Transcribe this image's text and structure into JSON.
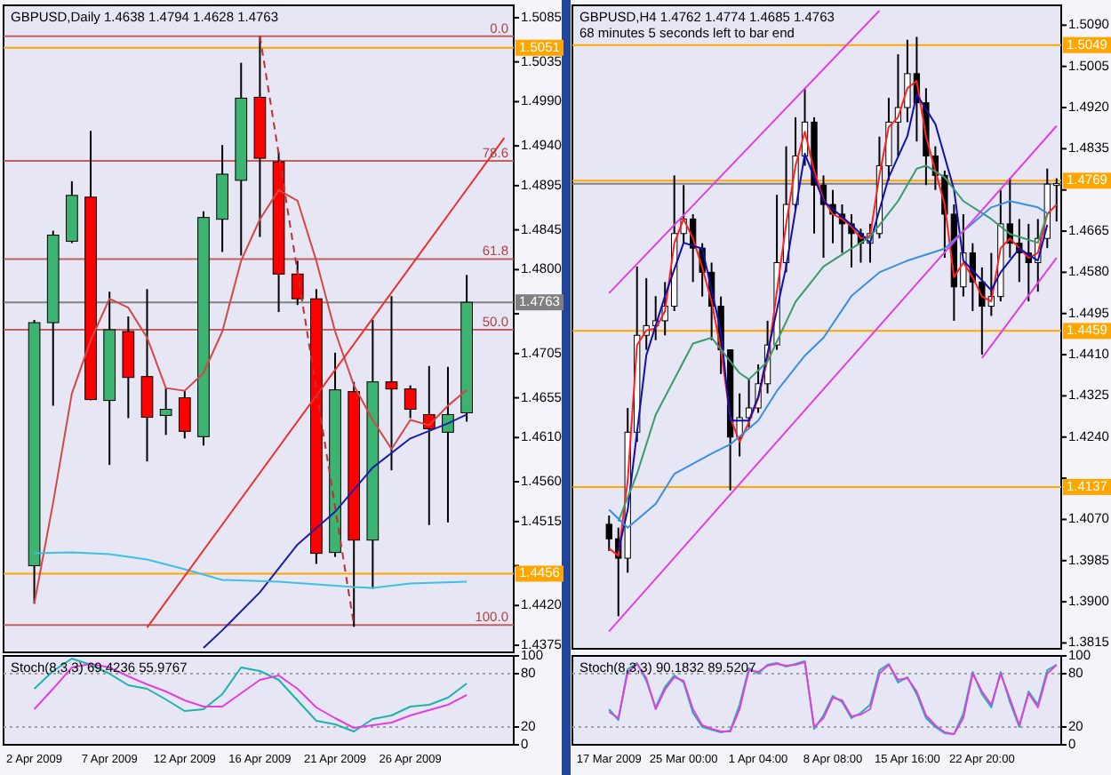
{
  "chart_data": [
    {
      "type": "candlestick",
      "title": "GBPUSD,Daily  1.4638 1.4794 1.4628 1.4763",
      "tick_labels": "y",
      "categories": [
        null,
        null,
        null,
        null,
        null,
        null,
        null,
        null,
        null,
        null,
        null,
        null,
        null,
        null,
        null,
        null,
        null,
        null,
        null,
        null,
        null,
        null,
        null,
        null,
        null,
        null
      ],
      "ohlc": [
        [
          1.4465,
          1.4743,
          1.4422,
          1.474
        ],
        [
          1.474,
          1.4844,
          1.4646,
          1.4839
        ],
        [
          1.4832,
          1.49,
          1.483,
          1.4884
        ],
        [
          1.4882,
          1.4957,
          1.4652,
          1.4653
        ],
        [
          1.4652,
          1.4775,
          1.4579,
          1.4732
        ],
        [
          1.473,
          1.4747,
          1.4632,
          1.4678
        ],
        [
          1.4679,
          1.4778,
          1.4583,
          1.4633
        ],
        [
          1.4635,
          1.4666,
          1.4613,
          1.4642
        ],
        [
          1.4655,
          1.4663,
          1.4609,
          1.4617
        ],
        [
          1.4611,
          1.4866,
          1.4601,
          1.4859
        ],
        [
          1.4857,
          1.4941,
          1.482,
          1.4908
        ],
        [
          1.4901,
          1.5034,
          1.4816,
          1.4994
        ],
        [
          1.4995,
          1.5064,
          1.4837,
          1.4926
        ],
        [
          1.4922,
          1.4933,
          1.4752,
          1.4795
        ],
        [
          1.4795,
          1.481,
          1.476,
          1.4767
        ],
        [
          1.4767,
          1.4778,
          1.4467,
          1.4479
        ],
        [
          1.448,
          1.4706,
          1.4475,
          1.4664
        ],
        [
          1.4662,
          1.4673,
          1.4396,
          1.4494
        ],
        [
          1.4494,
          1.4743,
          1.4439,
          1.4673
        ],
        [
          1.4673,
          1.477,
          1.4573,
          1.4665
        ],
        [
          1.4665,
          1.4669,
          1.4632,
          1.4642
        ],
        [
          1.4636,
          1.4691,
          1.4511,
          1.462
        ],
        [
          1.4616,
          1.469,
          1.4514,
          1.4636
        ],
        [
          1.4638,
          1.4794,
          1.4628,
          1.4763
        ],
        null,
        null
      ],
      "colors": [
        "#3cb371",
        "#3cb371",
        "#3cb371",
        "#ff0000",
        "#3cb371",
        "#ff0000",
        "#ff0000",
        "#3cb371",
        "#ff0000",
        "#3cb371",
        "#3cb371",
        "#3cb371",
        "#ff0000",
        "#ff0000",
        "#ff0000",
        "#ff0000",
        "#3cb371",
        "#ff0000",
        "#3cb371",
        "#ff0000",
        "#ff0000",
        "#ff0000",
        "#3cb371",
        "#3cb371",
        null,
        null
      ],
      "series": [
        {
          "type": "line",
          "color": "#d04848",
          "values": [
            1.4422,
            1.4536,
            1.466,
            1.472,
            1.4767,
            1.4757,
            1.4723,
            1.4666,
            1.4663,
            1.4683,
            1.473,
            1.481,
            1.4857,
            1.489,
            1.4878,
            1.481,
            1.473,
            1.4669,
            1.463,
            1.4597,
            1.463,
            1.4624,
            1.4646,
            1.4664,
            null,
            null
          ]
        },
        {
          "type": "line",
          "color": "#1c1ca8",
          "values": [
            null,
            null,
            null,
            null,
            null,
            null,
            null,
            null,
            null,
            1.4372,
            1.4392,
            null,
            1.4435,
            null,
            1.4489,
            null,
            1.4526,
            null,
            1.4576,
            null,
            1.4609,
            null,
            1.4626,
            1.4636,
            null,
            null
          ]
        },
        {
          "type": "line",
          "color": "#40bfe0",
          "values": [
            1.4479,
            null,
            1.448,
            null,
            1.4478,
            null,
            1.4472,
            null,
            1.4461,
            null,
            1.4449,
            null,
            null,
            1.4447,
            null,
            null,
            null,
            1.4441,
            1.444,
            null,
            1.4445,
            null,
            null,
            1.4447,
            null,
            null
          ]
        },
        {
          "type": "line",
          "color": "#e83030",
          "values": [
            null,
            null,
            null,
            null,
            null,
            null,
            1.4395,
            null,
            null,
            null,
            null,
            null,
            null,
            null,
            null,
            null,
            null,
            null,
            null,
            null,
            null,
            null,
            null,
            null,
            null,
            1.4949
          ]
        },
        {
          "type": "line",
          "color": "#c03030",
          "line_style": "dashed",
          "values": [
            null,
            null,
            null,
            null,
            null,
            null,
            null,
            null,
            null,
            null,
            null,
            null,
            1.5064,
            null,
            null,
            null,
            null,
            1.4398,
            null,
            null,
            null,
            null,
            null,
            null,
            null,
            null
          ]
        }
      ],
      "ylim": [
        1.4367,
        1.5099
      ],
      "yticks": [
        1.5085,
        1.5035,
        {
          "value": 1.499,
          "label": "1.4990"
        },
        {
          "value": 1.494,
          "label": "1.4940"
        },
        1.4895,
        1.4845,
        {
          "value": 1.48,
          "label": "1.4800"
        },
        {
          "value": 1.475,
          "label": null
        },
        1.4705,
        1.4655,
        {
          "value": 1.461,
          "label": "1.4610"
        },
        {
          "value": 1.456,
          "label": "1.4560"
        },
        1.4515,
        {
          "value": 1.4465,
          "label": null
        },
        {
          "value": 1.442,
          "label": "1.4420"
        },
        1.4375
      ],
      "ref_lines": [
        {
          "axis": "y",
          "value": 1.5051,
          "label": "1.5051",
          "color": "#ffa500"
        },
        {
          "axis": "y",
          "value": 1.4456,
          "label": "1.4456",
          "color": "#ffa500"
        },
        {
          "axis": "y",
          "value": 1.4763,
          "label": "1.4763",
          "color": "#808080"
        },
        {
          "axis": "y",
          "value": 1.5064,
          "color": "#c06060"
        },
        {
          "axis": "y",
          "value": 1.4923,
          "color": "#c06060"
        },
        {
          "axis": "y",
          "value": 1.4812,
          "color": "#c06060"
        },
        {
          "axis": "y",
          "value": 1.4732,
          "color": "#c06060"
        },
        {
          "axis": "y",
          "value": 1.4398,
          "color": "#c06060"
        }
      ],
      "annotations": [
        {
          "text": "0.0",
          "y": 1.5064
        },
        {
          "text": "78.6",
          "y": 1.4923
        },
        {
          "text": "61.8",
          "y": 1.4812
        },
        {
          "text": "50.0",
          "y": 1.4732
        },
        {
          "text": "100.0",
          "y": 1.4398
        }
      ]
    },
    {
      "type": "line",
      "title": "Stoch(8,3,3) 69.4236 55.9767",
      "categories": [
        "2 Apr 2009",
        null,
        null,
        null,
        "7 Apr 2009",
        null,
        null,
        null,
        "12 Apr 2009",
        null,
        null,
        null,
        "16 Apr 2009",
        null,
        null,
        null,
        "21 Apr 2009",
        null,
        null,
        null,
        "26 Apr 2009",
        null,
        null,
        null,
        null,
        null
      ],
      "series": [
        {
          "color": "#20b2aa",
          "values": [
            63,
            83,
            97,
            90,
            80,
            67,
            63,
            51,
            38,
            40,
            57,
            87,
            83,
            73,
            50,
            27,
            23,
            15,
            29,
            33,
            43,
            45,
            53,
            69,
            null,
            null
          ]
        },
        {
          "color": "#e040e0",
          "values": [
            40,
            63,
            87,
            91,
            87,
            77,
            68,
            60,
            50,
            43,
            43,
            58,
            73,
            78,
            63,
            42,
            30,
            19,
            22,
            25,
            33,
            39,
            45,
            56,
            null,
            null
          ]
        }
      ],
      "ylim": [
        0,
        100
      ],
      "yticks": [
        100,
        80,
        20,
        0
      ],
      "ref_lines": [
        {
          "axis": "y",
          "value": 80,
          "color": "#a0a0a0",
          "line_style": "dotted"
        },
        {
          "axis": "y",
          "value": 20,
          "color": "#a0a0a0",
          "line_style": "dotted"
        }
      ]
    },
    {
      "type": "candlestick",
      "title": "GBPUSD,H4  1.4762 1.4774 1.4685 1.4763",
      "subtitle": "68 minutes 5 seconds left to bar end",
      "tick_labels": "y",
      "categories": [
        null,
        null,
        null,
        null,
        null,
        null,
        null,
        null,
        null,
        null,
        null,
        null,
        null,
        null,
        null,
        null,
        null,
        null,
        null,
        null,
        null,
        null,
        null,
        null,
        null,
        null,
        null,
        null,
        null,
        null,
        null,
        null,
        null,
        null,
        null,
        null,
        null,
        null,
        null,
        null,
        null,
        null,
        null,
        null,
        null,
        null,
        null,
        null,
        null
      ],
      "ohlc": [
        [
          1.406,
          1.4078,
          1.4005,
          1.403
        ],
        [
          1.403,
          1.4053,
          1.387,
          1.399
        ],
        [
          1.399,
          1.43,
          1.396,
          1.425
        ],
        [
          1.425,
          1.4592,
          1.423,
          1.445
        ],
        [
          1.445,
          1.4568,
          1.442,
          1.447
        ],
        [
          1.447,
          1.4531,
          1.444,
          1.448
        ],
        [
          1.448,
          1.456,
          1.445,
          1.451
        ],
        [
          1.451,
          1.478,
          1.45,
          1.466
        ],
        [
          1.466,
          1.476,
          1.464,
          1.469
        ],
        [
          1.469,
          1.47,
          1.456,
          1.463
        ],
        [
          1.463,
          1.464,
          1.453,
          1.458
        ],
        [
          1.458,
          1.46,
          1.444,
          1.451
        ],
        [
          1.451,
          1.453,
          1.437,
          1.442
        ],
        [
          1.442,
          1.442,
          1.413,
          1.424
        ],
        [
          1.424,
          1.433,
          1.42,
          1.428
        ],
        [
          1.428,
          1.436,
          1.426,
          1.43
        ],
        [
          1.43,
          1.439,
          1.429,
          1.435
        ],
        [
          1.435,
          1.448,
          1.433,
          1.443
        ],
        [
          1.443,
          1.474,
          1.442,
          1.46
        ],
        [
          1.46,
          1.484,
          1.458,
          1.472
        ],
        [
          1.472,
          1.49,
          1.471,
          1.482
        ],
        [
          1.482,
          1.496,
          1.48,
          1.489
        ],
        [
          1.489,
          1.49,
          1.466,
          1.476
        ],
        [
          1.476,
          1.478,
          1.461,
          1.472
        ],
        [
          1.472,
          1.475,
          1.464,
          1.47
        ],
        [
          1.47,
          1.472,
          1.462,
          1.468
        ],
        [
          1.468,
          1.47,
          1.459,
          1.466
        ],
        [
          1.466,
          1.467,
          1.46,
          1.464
        ],
        [
          1.464,
          1.468,
          1.46,
          1.466
        ],
        [
          1.466,
          1.486,
          1.465,
          1.48
        ],
        [
          1.48,
          1.494,
          1.477,
          1.489
        ],
        [
          1.489,
          1.503,
          1.482,
          1.492
        ],
        [
          1.492,
          1.506,
          1.489,
          1.499
        ],
        [
          1.499,
          1.5066,
          1.485,
          1.493
        ],
        [
          1.493,
          1.496,
          1.476,
          1.482
        ],
        [
          1.482,
          1.484,
          1.475,
          1.478
        ],
        [
          1.478,
          1.479,
          1.461,
          1.47
        ],
        [
          1.47,
          1.472,
          1.448,
          1.455
        ],
        [
          1.455,
          1.47,
          1.453,
          1.462
        ],
        [
          1.462,
          1.464,
          1.45,
          1.456
        ],
        [
          1.456,
          1.459,
          1.441,
          1.451
        ],
        [
          1.451,
          1.462,
          1.449,
          1.453
        ],
        [
          1.453,
          1.475,
          1.452,
          1.468
        ],
        [
          1.468,
          1.4775,
          1.461,
          1.464
        ],
        [
          1.464,
          1.469,
          1.456,
          1.462
        ],
        [
          1.462,
          1.468,
          1.452,
          1.46
        ],
        [
          1.46,
          1.469,
          1.454,
          1.465
        ],
        [
          1.465,
          1.4794,
          1.463,
          1.4762
        ],
        [
          1.4762,
          1.4774,
          1.4685,
          1.4763
        ]
      ],
      "colors": [
        "#000000",
        "#000000",
        "#ffffff",
        "#ffffff",
        "#ffffff",
        "#ffffff",
        "#ffffff",
        "#ffffff",
        "#ffffff",
        "#000000",
        "#000000",
        "#000000",
        "#000000",
        "#000000",
        "#ffffff",
        "#ffffff",
        "#ffffff",
        "#ffffff",
        "#ffffff",
        "#ffffff",
        "#ffffff",
        "#ffffff",
        "#000000",
        "#000000",
        "#000000",
        "#000000",
        "#000000",
        "#000000",
        "#ffffff",
        "#ffffff",
        "#ffffff",
        "#ffffff",
        "#ffffff",
        "#000000",
        "#000000",
        "#000000",
        "#000000",
        "#000000",
        "#ffffff",
        "#000000",
        "#000000",
        "#ffffff",
        "#ffffff",
        "#000000",
        "#000000",
        "#000000",
        "#ffffff",
        "#ffffff",
        "#ffffff"
      ],
      "series": [
        {
          "type": "line",
          "color": "#ff2020",
          "values": [
            1.401,
            1.3995,
            1.415,
            1.443,
            1.446,
            1.4464,
            1.45,
            1.464,
            1.469,
            1.465,
            1.459,
            1.452,
            1.442,
            1.428,
            1.423,
            1.427,
            1.432,
            1.44,
            1.454,
            1.468,
            1.48,
            1.487,
            1.479,
            1.473,
            1.47,
            1.469,
            1.4675,
            1.465,
            1.4655,
            1.478,
            1.488,
            1.49,
            1.496,
            1.4975,
            1.486,
            1.479,
            1.472,
            1.457,
            1.46,
            1.457,
            1.453,
            1.452,
            1.463,
            1.465,
            1.463,
            1.461,
            1.462,
            1.47,
            1.472
          ]
        },
        {
          "type": "line",
          "color": "#1010b0",
          "values": [
            null,
            1.4005,
            1.409,
            null,
            1.4409,
            null,
            1.4531,
            null,
            1.4641,
            null,
            1.4629,
            null,
            1.4458,
            1.4274,
            null,
            1.4274,
            1.4323,
            null,
            null,
            1.4592,
            null,
            1.4825,
            null,
            1.4727,
            null,
            null,
            1.4678,
            null,
            1.4641,
            null,
            1.4776,
            null,
            1.4861,
            1.4947,
            null,
            1.4886,
            null,
            1.4751,
            1.4604,
            null,
            null,
            1.4543,
            1.458,
            null,
            1.4629,
            null,
            1.4604,
            1.4678,
            null
          ]
        },
        {
          "type": "line",
          "color": "#3a9a6a",
          "values": [
            null,
            1.4066,
            null,
            1.4164,
            null,
            1.4286,
            null,
            null,
            null,
            1.4433,
            null,
            1.4445,
            null,
            null,
            1.4372,
            1.4359,
            null,
            1.4396,
            null,
            null,
            1.4519,
            null,
            null,
            1.4592,
            null,
            null,
            1.4629,
            null,
            1.4653,
            null,
            null,
            1.4727,
            null,
            1.4794,
            1.48,
            null,
            1.4776,
            null,
            1.4727,
            null,
            null,
            1.469,
            null,
            1.4659,
            null,
            null,
            1.4641,
            1.47,
            null
          ]
        },
        {
          "type": "line",
          "color": "#3a8ee0",
          "values": [
            1.409,
            null,
            1.4053,
            null,
            null,
            1.4102,
            null,
            1.4164,
            null,
            null,
            null,
            1.4206,
            null,
            1.4225,
            null,
            null,
            1.4274,
            null,
            1.4335,
            null,
            null,
            1.4408,
            null,
            1.4445,
            null,
            null,
            1.4531,
            null,
            null,
            1.458,
            null,
            null,
            1.4604,
            null,
            null,
            null,
            1.4629,
            null,
            1.4665,
            null,
            null,
            1.4714,
            null,
            1.4727,
            null,
            null,
            1.4714,
            1.4702,
            null
          ]
        },
        {
          "type": "line",
          "color": "#e040e0",
          "values": [
            1.4537,
            null,
            null,
            null,
            null,
            null,
            null,
            null,
            null,
            null,
            null,
            null,
            null,
            null,
            null,
            null,
            null,
            null,
            null,
            null,
            null,
            null,
            null,
            null,
            null,
            null,
            null,
            null,
            null,
            1.512,
            null,
            null,
            null,
            null,
            null,
            null,
            null,
            null,
            null,
            null,
            null,
            null,
            null,
            null,
            null,
            null,
            null,
            null,
            null
          ]
        },
        {
          "type": "line",
          "color": "#e040e0",
          "values": [
            1.3839,
            null,
            null,
            null,
            null,
            null,
            null,
            null,
            null,
            null,
            null,
            null,
            null,
            null,
            null,
            null,
            null,
            null,
            null,
            null,
            null,
            null,
            null,
            null,
            null,
            null,
            null,
            null,
            null,
            null,
            null,
            null,
            null,
            null,
            null,
            null,
            null,
            null,
            null,
            null,
            null,
            null,
            null,
            null,
            null,
            null,
            null,
            null,
            1.4882
          ]
        },
        {
          "type": "line",
          "color": "#e040e0",
          "values": [
            null,
            null,
            null,
            null,
            null,
            null,
            null,
            null,
            null,
            null,
            null,
            null,
            null,
            null,
            null,
            null,
            null,
            null,
            null,
            null,
            null,
            null,
            null,
            null,
            null,
            null,
            null,
            null,
            null,
            null,
            null,
            null,
            null,
            null,
            null,
            null,
            null,
            null,
            null,
            null,
            1.4403,
            null,
            null,
            null,
            null,
            null,
            null,
            null,
            1.461
          ]
        }
      ],
      "ylim": [
        1.3803,
        1.5131
      ],
      "yticks": [
        {
          "value": 1.509,
          "label": "1.5090"
        },
        1.5005,
        {
          "value": 1.492,
          "label": "1.4920"
        },
        1.4835,
        {
          "value": 1.475,
          "label": null
        },
        1.4665,
        {
          "value": 1.458,
          "label": "1.4580"
        },
        1.4495,
        {
          "value": 1.441,
          "label": "1.4410"
        },
        1.4325,
        {
          "value": 1.424,
          "label": "1.4240"
        },
        {
          "value": 1.4155,
          "label": null
        },
        {
          "value": 1.407,
          "label": "1.4070"
        },
        1.3985,
        {
          "value": 1.39,
          "label": "1.3900"
        },
        1.3815
      ],
      "ref_lines": [
        {
          "axis": "y",
          "value": 1.5049,
          "label": "1.5049",
          "color": "#ffa500"
        },
        {
          "axis": "y",
          "value": 1.4769,
          "label": "1.4769",
          "color": "#ffa500"
        },
        {
          "axis": "y",
          "value": 1.4459,
          "label": "1.4459",
          "color": "#ffa500"
        },
        {
          "axis": "y",
          "value": 1.4137,
          "label": "1.4137",
          "color": "#ffa500"
        },
        {
          "axis": "y",
          "value": 1.4763,
          "color": "#808080"
        }
      ]
    },
    {
      "type": "line",
      "title": "Stoch(8,3,3) 90.1832 89.5207",
      "categories": [
        "17 Mar 2009",
        null,
        null,
        null,
        null,
        null,
        null,
        null,
        "25 Mar 00:00",
        null,
        null,
        null,
        null,
        null,
        null,
        null,
        "1 Apr 04:00",
        null,
        null,
        null,
        null,
        null,
        null,
        null,
        "8 Apr 08:00",
        null,
        null,
        null,
        null,
        null,
        null,
        null,
        "15 Apr 16:00",
        null,
        null,
        null,
        null,
        null,
        null,
        null,
        "22 Apr 20:00",
        null,
        null,
        null,
        null,
        null,
        null,
        null,
        null
      ],
      "series": [
        {
          "color": "#20b2aa",
          "values": [
            40,
            28,
            85,
            92,
            72,
            42,
            65,
            78,
            70,
            36,
            20,
            17,
            14,
            16,
            45,
            86,
            80,
            90,
            92,
            88,
            91,
            94,
            18,
            33,
            55,
            48,
            30,
            36,
            45,
            84,
            91,
            70,
            76,
            57,
            30,
            20,
            13,
            12,
            35,
            82,
            57,
            42,
            82,
            48,
            20,
            60,
            45,
            84,
            90
          ]
        },
        {
          "color": "#e040e0",
          "values": [
            37,
            30,
            81,
            91,
            75,
            40,
            62,
            76,
            72,
            40,
            22,
            18,
            15,
            15,
            40,
            84,
            82,
            89,
            91,
            89,
            90,
            93,
            20,
            30,
            53,
            50,
            32,
            34,
            40,
            80,
            90,
            73,
            75,
            60,
            33,
            22,
            14,
            12,
            30,
            80,
            60,
            45,
            80,
            52,
            22,
            58,
            42,
            80,
            90
          ]
        }
      ],
      "ylim": [
        0,
        100
      ],
      "yticks": [
        100,
        80,
        20,
        0
      ],
      "ref_lines": [
        {
          "axis": "y",
          "value": 80,
          "color": "#a0a0a0",
          "line_style": "dotted"
        },
        {
          "axis": "y",
          "value": 20,
          "color": "#a0a0a0",
          "line_style": "dotted"
        }
      ]
    }
  ]
}
